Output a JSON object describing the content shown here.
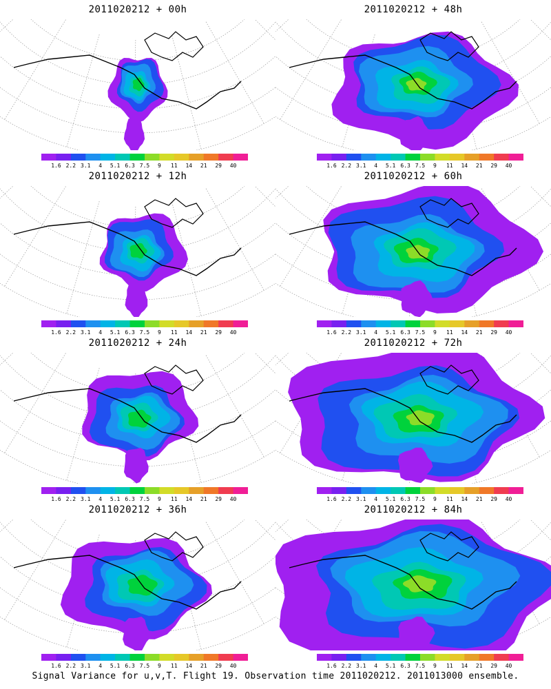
{
  "chart_data": {
    "type": "heatmap",
    "title": "Signal Variance for u,v,T. Flight 19. Observation time 2011020212. 2011013000 ensemble.",
    "colorbar": {
      "ticks": [
        "1.6",
        "2.2",
        "3.1",
        "4",
        "5.1",
        "6.3",
        "7.5",
        "9",
        "11",
        "14",
        "21",
        "29",
        "40"
      ],
      "colors": [
        "#a020f0",
        "#7820f0",
        "#2050f0",
        "#1e90f0",
        "#00b4e6",
        "#00c8b4",
        "#00d23c",
        "#8cdc28",
        "#d2dc28",
        "#e6c828",
        "#e6a028",
        "#f07828",
        "#f03c50",
        "#f01e96"
      ]
    },
    "panels": [
      {
        "title": "2011020212 + 00h",
        "forecast_hour": 0,
        "max_value_range": "9-11"
      },
      {
        "title": "2011020212 + 12h",
        "forecast_hour": 12,
        "max_value_range": "9-11"
      },
      {
        "title": "2011020212 + 24h",
        "forecast_hour": 24,
        "max_value_range": "9-11"
      },
      {
        "title": "2011020212 + 36h",
        "forecast_hour": 36,
        "max_value_range": "9-11"
      },
      {
        "title": "2011020212 + 48h",
        "forecast_hour": 48,
        "max_value_range": "9-11"
      },
      {
        "title": "2011020212 + 60h",
        "forecast_hour": 60,
        "max_value_range": "9-11"
      },
      {
        "title": "2011020212 + 72h",
        "forecast_hour": 72,
        "max_value_range": "9-11"
      },
      {
        "title": "2011020212 + 84h",
        "forecast_hour": 84,
        "max_value_range": "9-11"
      }
    ]
  }
}
